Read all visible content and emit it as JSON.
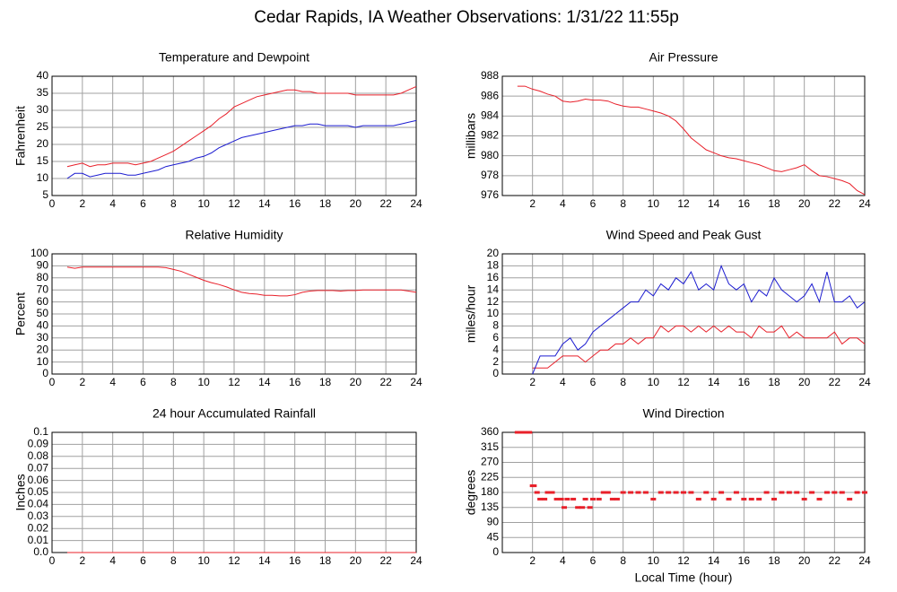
{
  "title": "Cedar Rapids, IA Weather Observations: 1/31/22 11:55p",
  "chart_data": [
    {
      "type": "line",
      "title": "Temperature and Dewpoint",
      "ylabel": "Fahrenheit",
      "xlim": [
        0,
        24
      ],
      "xticks": [
        0,
        2,
        4,
        6,
        8,
        10,
        12,
        14,
        16,
        18,
        20,
        22,
        24
      ],
      "ylim": [
        5,
        40
      ],
      "yticks": [
        5,
        10,
        15,
        20,
        25,
        30,
        35,
        40
      ],
      "grid": true,
      "x": [
        1,
        1.5,
        2,
        2.5,
        3,
        3.5,
        4,
        4.5,
        5,
        5.5,
        6,
        6.5,
        7,
        7.5,
        8,
        8.5,
        9,
        9.5,
        10,
        10.5,
        11,
        11.5,
        12,
        12.5,
        13,
        13.5,
        14,
        14.5,
        15,
        15.5,
        16,
        16.5,
        17,
        17.5,
        18,
        18.5,
        19,
        19.5,
        20,
        20.5,
        21,
        21.5,
        22,
        22.5,
        23,
        23.5,
        24
      ],
      "series": [
        {
          "color": "#e8202a",
          "values": [
            13.5,
            14,
            14.5,
            13.5,
            14,
            14,
            14.5,
            14.5,
            14.5,
            14,
            14.5,
            15,
            16,
            17,
            18,
            19.5,
            21,
            22.5,
            24,
            25.5,
            27.5,
            29,
            31,
            32,
            33,
            34,
            34.5,
            35,
            35.5,
            36,
            36,
            35.5,
            35.5,
            35,
            35,
            35,
            35,
            35,
            34.5,
            34.5,
            34.5,
            34.5,
            34.5,
            34.5,
            35,
            36,
            37
          ]
        },
        {
          "color": "#1c1cd0",
          "values": [
            10,
            11.5,
            11.5,
            10.5,
            11,
            11.5,
            11.5,
            11.5,
            11,
            11,
            11.5,
            12,
            12.5,
            13.5,
            14,
            14.5,
            15,
            16,
            16.5,
            17.5,
            19,
            20,
            21,
            22,
            22.5,
            23,
            23.5,
            24,
            24.5,
            25,
            25.5,
            25.5,
            26,
            26,
            25.5,
            25.5,
            25.5,
            25.5,
            25,
            25.5,
            25.5,
            25.5,
            25.5,
            25.5,
            26,
            26.5,
            27
          ]
        }
      ]
    },
    {
      "type": "line",
      "title": "Air Pressure",
      "ylabel": "millibars",
      "xlim": [
        0,
        24
      ],
      "xticks": [
        2,
        4,
        6,
        8,
        10,
        12,
        14,
        16,
        18,
        20,
        22,
        24
      ],
      "ylim": [
        976,
        988
      ],
      "yticks": [
        976,
        978,
        980,
        982,
        984,
        986,
        988
      ],
      "grid": true,
      "x": [
        1,
        1.5,
        2,
        2.5,
        3,
        3.5,
        4,
        4.5,
        5,
        5.5,
        6,
        6.5,
        7,
        7.5,
        8,
        8.5,
        9,
        9.5,
        10,
        10.5,
        11,
        11.5,
        12,
        12.5,
        13,
        13.5,
        14,
        14.5,
        15,
        15.5,
        16,
        16.5,
        17,
        17.5,
        18,
        18.5,
        19,
        19.5,
        20,
        20.5,
        21,
        21.5,
        22,
        22.5,
        23,
        23.5,
        24
      ],
      "series": [
        {
          "color": "#e8202a",
          "values": [
            987,
            987,
            986.7,
            986.5,
            986.2,
            986,
            985.5,
            985.4,
            985.5,
            985.7,
            985.6,
            985.6,
            985.5,
            985.2,
            985,
            984.9,
            984.9,
            984.7,
            984.5,
            984.3,
            984,
            983.5,
            982.7,
            981.8,
            981.2,
            980.6,
            980.3,
            980,
            979.8,
            979.7,
            979.5,
            979.3,
            979.1,
            978.8,
            978.5,
            978.4,
            978.6,
            978.8,
            979.1,
            978.5,
            978,
            977.9,
            977.7,
            977.5,
            977.2,
            976.5,
            976.1
          ]
        }
      ]
    },
    {
      "type": "line",
      "title": "Relative Humidity",
      "ylabel": "Percent",
      "xlim": [
        0,
        24
      ],
      "xticks": [
        0,
        2,
        4,
        6,
        8,
        10,
        12,
        14,
        16,
        18,
        20,
        22,
        24
      ],
      "ylim": [
        0,
        100
      ],
      "yticks": [
        0,
        10,
        20,
        30,
        40,
        50,
        60,
        70,
        80,
        90,
        100
      ],
      "grid": true,
      "x": [
        1,
        1.5,
        2,
        2.5,
        3,
        3.5,
        4,
        4.5,
        5,
        5.5,
        6,
        6.5,
        7,
        7.5,
        8,
        8.5,
        9,
        9.5,
        10,
        10.5,
        11,
        11.5,
        12,
        12.5,
        13,
        13.5,
        14,
        14.5,
        15,
        15.5,
        16,
        16.5,
        17,
        17.5,
        18,
        18.5,
        19,
        19.5,
        20,
        20.5,
        21,
        21.5,
        22,
        22.5,
        23,
        23.5,
        24
      ],
      "series": [
        {
          "color": "#e8202a",
          "values": [
            89,
            88,
            89,
            89,
            89,
            89,
            89,
            89,
            89,
            89,
            89,
            89,
            89,
            88.5,
            87,
            85.5,
            83,
            80.5,
            78,
            76,
            74.5,
            72.5,
            70,
            68,
            67,
            66.5,
            65.5,
            65.5,
            65,
            65,
            66,
            68,
            69,
            69.5,
            69.5,
            69.5,
            69,
            69.5,
            69.5,
            70,
            70,
            70,
            70,
            70,
            70,
            69,
            68
          ]
        }
      ]
    },
    {
      "type": "line",
      "title": "Wind Speed and Peak Gust",
      "ylabel": "miles/hour",
      "xlim": [
        0,
        24
      ],
      "xticks": [
        2,
        4,
        6,
        8,
        10,
        12,
        14,
        16,
        18,
        20,
        22,
        24
      ],
      "ylim": [
        0,
        20
      ],
      "yticks": [
        0,
        2,
        4,
        6,
        8,
        10,
        12,
        14,
        16,
        18,
        20
      ],
      "grid": true,
      "x": [
        2,
        2.5,
        3,
        3.5,
        4,
        4.5,
        5,
        5.5,
        6,
        6.5,
        7,
        7.5,
        8,
        8.5,
        9,
        9.5,
        10,
        10.5,
        11,
        11.5,
        12,
        12.5,
        13,
        13.5,
        14,
        14.5,
        15,
        15.5,
        16,
        16.5,
        17,
        17.5,
        18,
        18.5,
        19,
        19.5,
        20,
        20.5,
        21,
        21.5,
        22,
        22.5,
        23,
        23.5,
        24
      ],
      "series": [
        {
          "color": "#e8202a",
          "values": [
            1,
            1,
            1,
            2,
            3,
            3,
            3,
            2,
            3,
            4,
            4,
            5,
            5,
            6,
            5,
            6,
            6,
            8,
            7,
            8,
            8,
            7,
            8,
            7,
            8,
            7,
            8,
            7,
            7,
            6,
            8,
            7,
            7,
            8,
            6,
            7,
            6,
            6,
            6,
            6,
            7,
            5,
            6,
            6,
            5
          ]
        },
        {
          "color": "#1c1cd0",
          "values": [
            0,
            3,
            3,
            3,
            5,
            6,
            4,
            5,
            7,
            8,
            9,
            10,
            11,
            12,
            12,
            14,
            13,
            15,
            14,
            16,
            15,
            17,
            14,
            15,
            14,
            18,
            15,
            14,
            15,
            12,
            14,
            13,
            16,
            14,
            13,
            12,
            13,
            15,
            12,
            17,
            12,
            12,
            13,
            11,
            12
          ]
        }
      ]
    },
    {
      "type": "line",
      "title": "24 hour Accumulated Rainfall",
      "ylabel": "Inches",
      "xlim": [
        0,
        24
      ],
      "xticks": [
        0,
        2,
        4,
        6,
        8,
        10,
        12,
        14,
        16,
        18,
        20,
        22,
        24
      ],
      "ylim": [
        0,
        0.1
      ],
      "yticks": [
        {
          "value": 0,
          "label": "0.0"
        },
        0.01,
        0.02,
        0.03,
        0.04,
        0.05,
        0.06,
        0.07,
        0.08,
        0.09,
        0.1
      ],
      "grid": true,
      "x": [
        1,
        24
      ],
      "series": [
        {
          "color": "#e8202a",
          "values": [
            0,
            0
          ]
        }
      ]
    },
    {
      "type": "scatter",
      "title": "Wind Direction",
      "ylabel": "degrees",
      "xlabel": "Local Time (hour)",
      "xlim": [
        0,
        24
      ],
      "xticks": [
        2,
        4,
        6,
        8,
        10,
        12,
        14,
        16,
        18,
        20,
        22,
        24
      ],
      "ylim": [
        0,
        360
      ],
      "yticks": [
        0,
        45,
        90,
        135,
        180,
        225,
        270,
        315,
        360
      ],
      "grid": true,
      "color": "#e8202a",
      "x": [
        1,
        1.2,
        1.4,
        1.6,
        1.8,
        2,
        2.1,
        2.3,
        2.5,
        2.8,
        3,
        3.3,
        3.6,
        3.9,
        4.1,
        4.3,
        4.7,
        5,
        5.3,
        5.5,
        5.8,
        6,
        6.4,
        6.7,
        7,
        7.3,
        7.6,
        8,
        8.5,
        9,
        9.5,
        10,
        10.5,
        11,
        11.5,
        12,
        12.5,
        13,
        13.5,
        14,
        14.5,
        15,
        15.5,
        16,
        16.5,
        17,
        17.5,
        18,
        18.5,
        19,
        19.5,
        20,
        20.5,
        21,
        21.5,
        22,
        22.5,
        23,
        23.5,
        24
      ],
      "values": [
        360,
        360,
        360,
        360,
        360,
        200,
        200,
        180,
        160,
        160,
        180,
        180,
        160,
        160,
        135,
        160,
        160,
        135,
        135,
        160,
        135,
        160,
        160,
        180,
        180,
        160,
        160,
        180,
        180,
        180,
        180,
        160,
        180,
        180,
        180,
        180,
        180,
        160,
        180,
        160,
        180,
        160,
        180,
        160,
        160,
        160,
        180,
        160,
        180,
        180,
        180,
        160,
        180,
        160,
        180,
        180,
        180,
        160,
        180,
        180
      ]
    }
  ]
}
